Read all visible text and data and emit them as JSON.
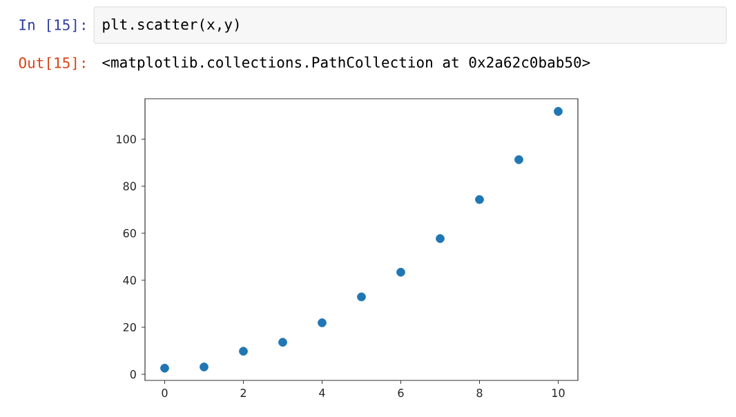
{
  "chart_data": {
    "type": "scatter",
    "x": [
      0,
      1,
      2,
      3,
      4,
      5,
      6,
      7,
      8,
      9,
      10
    ],
    "series": [
      {
        "color": "#1f77b4",
        "values": [
          2.6,
          3.1,
          9.8,
          13.6,
          21.9,
          32.9,
          43.4,
          57.7,
          74.3,
          91.3,
          111.8
        ]
      }
    ],
    "xlim": [
      -0.5,
      10.5
    ],
    "ylim": [
      -2.6,
      117.2
    ],
    "xticks": [
      0,
      2,
      4,
      6,
      8,
      10
    ],
    "yticks": [
      0,
      20,
      40,
      60,
      80,
      100
    ],
    "annotations": [
      "In [15]:",
      "plt.scatter(x,y)",
      "Out[15]:",
      "<matplotlib.collections.PathCollection at 0x2a62c0bab50>"
    ]
  }
}
